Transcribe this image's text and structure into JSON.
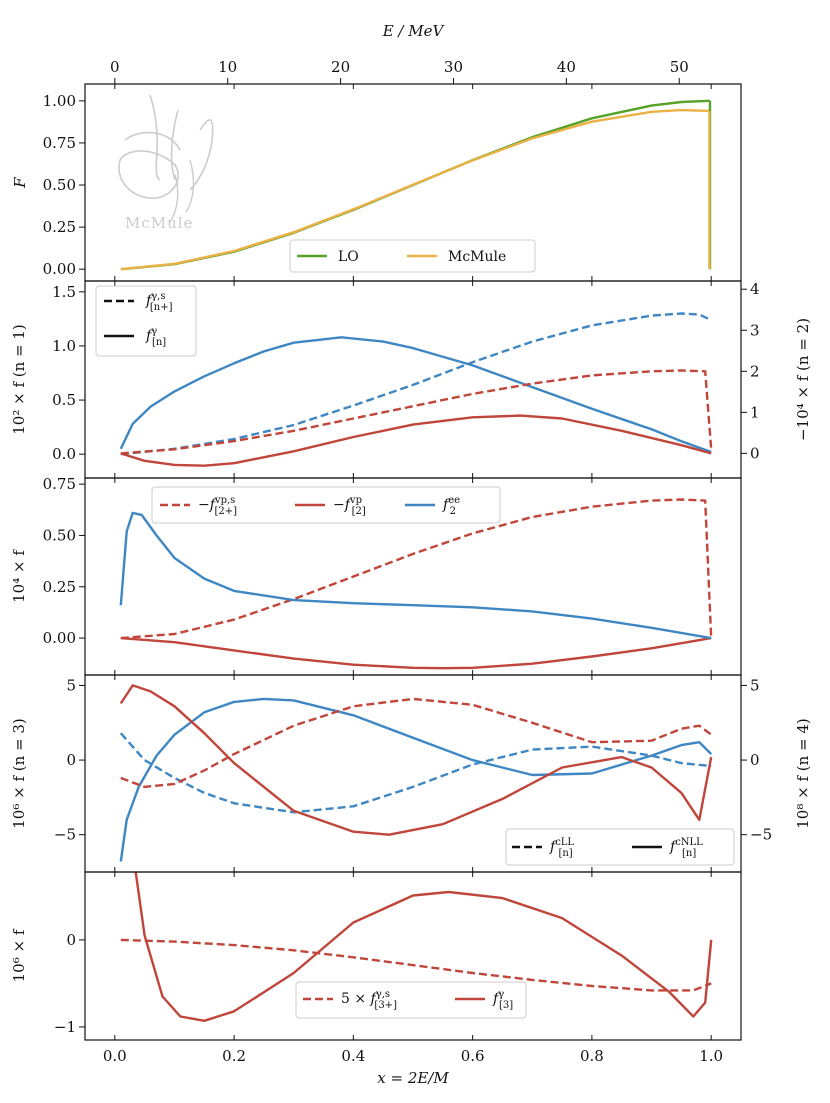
{
  "colors": {
    "green": "#56a227",
    "orange": "#ecb146",
    "blue": "#3f87c2",
    "red": "#c0453a",
    "black": "#111111",
    "watermark": "#cccccc"
  },
  "watermark": {
    "text": "McMule"
  },
  "chart_data": [
    {
      "type": "line",
      "top_axis": {
        "label": "E / MeV",
        "ticks": [
          0,
          10,
          20,
          30,
          40,
          50
        ],
        "range": [
          0,
          52.83
        ],
        "ticks_shown": [
          "0",
          "10",
          "20",
          "30",
          "40",
          "50"
        ]
      },
      "ylabel": "F",
      "ylim": [
        -0.07,
        1.1
      ],
      "yticks": [
        "0.00",
        "0.25",
        "0.50",
        "0.75",
        "1.00"
      ],
      "legend": [
        "LO",
        "McMule"
      ],
      "series": [
        {
          "name": "LO",
          "color": "green",
          "style": "solid",
          "x": [
            0.01,
            0.1,
            0.2,
            0.3,
            0.4,
            0.5,
            0.6,
            0.7,
            0.8,
            0.9,
            0.95,
            0.998
          ],
          "y": [
            0,
            0.03,
            0.104,
            0.216,
            0.352,
            0.5,
            0.648,
            0.784,
            0.896,
            0.972,
            0.993,
            1.0
          ]
        },
        {
          "name": "McMule",
          "color": "orange",
          "style": "solid",
          "x": [
            0.01,
            0.1,
            0.2,
            0.3,
            0.4,
            0.5,
            0.6,
            0.7,
            0.8,
            0.9,
            0.95,
            0.997
          ],
          "y": [
            0,
            0.032,
            0.108,
            0.22,
            0.356,
            0.502,
            0.646,
            0.777,
            0.876,
            0.935,
            0.945,
            0.94
          ]
        }
      ]
    },
    {
      "type": "line",
      "ylabel_left": "10² × f (n = 1)",
      "ylabel_right": "−10⁴ × f (n = 2)",
      "ylim_left": [
        -0.22,
        1.6
      ],
      "yticks_left": [
        "0.0",
        "0.5",
        "1.0",
        "1.5"
      ],
      "ylim_right": [
        -0.6,
        4.2
      ],
      "yticks_right": [
        "0",
        "1",
        "2",
        "3",
        "4"
      ],
      "legend": [
        "f^{γ,s}_{[n+]}",
        "f^{γ}_{[n]}"
      ],
      "series": [
        {
          "name": "blue solid",
          "color": "blue",
          "style": "solid",
          "axis": "left",
          "x": [
            0.01,
            0.03,
            0.06,
            0.1,
            0.15,
            0.2,
            0.25,
            0.3,
            0.38,
            0.45,
            0.5,
            0.6,
            0.7,
            0.8,
            0.9,
            0.95,
            1.0
          ],
          "y": [
            0.05,
            0.28,
            0.44,
            0.58,
            0.72,
            0.84,
            0.95,
            1.03,
            1.08,
            1.04,
            0.98,
            0.82,
            0.62,
            0.42,
            0.23,
            0.12,
            0.02
          ]
        },
        {
          "name": "blue dashed",
          "color": "blue",
          "style": "dashed",
          "axis": "left",
          "x": [
            0.01,
            0.1,
            0.2,
            0.3,
            0.4,
            0.5,
            0.6,
            0.7,
            0.8,
            0.9,
            0.95,
            0.98,
            1.0
          ],
          "y": [
            0.0,
            0.05,
            0.14,
            0.27,
            0.45,
            0.64,
            0.85,
            1.04,
            1.19,
            1.28,
            1.3,
            1.29,
            1.24
          ]
        },
        {
          "name": "red solid",
          "color": "red",
          "style": "solid",
          "axis": "right",
          "x": [
            0.01,
            0.05,
            0.1,
            0.15,
            0.2,
            0.3,
            0.4,
            0.5,
            0.6,
            0.68,
            0.75,
            0.85,
            0.95,
            1.0
          ],
          "y": [
            0.0,
            -0.18,
            -0.28,
            -0.3,
            -0.24,
            0.05,
            0.4,
            0.7,
            0.88,
            0.92,
            0.85,
            0.55,
            0.2,
            0.0
          ]
        },
        {
          "name": "red dashed",
          "color": "red",
          "style": "dashed",
          "axis": "right",
          "x": [
            0.01,
            0.1,
            0.2,
            0.3,
            0.4,
            0.5,
            0.6,
            0.7,
            0.8,
            0.9,
            0.95,
            0.99,
            1.0
          ],
          "y": [
            0.0,
            0.1,
            0.3,
            0.55,
            0.85,
            1.15,
            1.45,
            1.7,
            1.9,
            2.0,
            2.02,
            2.0,
            0.1
          ]
        }
      ]
    },
    {
      "type": "line",
      "ylabel": "10⁴ × f",
      "ylim": [
        -0.18,
        0.78
      ],
      "yticks": [
        "0.00",
        "0.25",
        "0.50",
        "0.75"
      ],
      "legend": [
        "−f^{vp,s}_{[2+]}",
        "−f^{vp}_{[2]}",
        "f^{ee}_{2}"
      ],
      "series": [
        {
          "name": "−f vp,s [2+]",
          "color": "red",
          "style": "dashed",
          "x": [
            0.01,
            0.1,
            0.2,
            0.3,
            0.4,
            0.5,
            0.6,
            0.7,
            0.8,
            0.9,
            0.95,
            0.99,
            1.0
          ],
          "y": [
            0.0,
            0.02,
            0.09,
            0.19,
            0.3,
            0.41,
            0.51,
            0.59,
            0.64,
            0.67,
            0.675,
            0.67,
            0.0
          ]
        },
        {
          "name": "−f vp [2]",
          "color": "red",
          "style": "solid",
          "x": [
            0.01,
            0.1,
            0.2,
            0.3,
            0.4,
            0.5,
            0.55,
            0.6,
            0.7,
            0.8,
            0.9,
            1.0
          ],
          "y": [
            0.0,
            -0.02,
            -0.06,
            -0.1,
            -0.13,
            -0.145,
            -0.147,
            -0.145,
            -0.125,
            -0.09,
            -0.05,
            0.0
          ]
        },
        {
          "name": "f ee 2",
          "color": "blue",
          "style": "solid",
          "x": [
            0.01,
            0.02,
            0.03,
            0.045,
            0.07,
            0.1,
            0.15,
            0.2,
            0.3,
            0.4,
            0.5,
            0.6,
            0.7,
            0.8,
            0.9,
            1.0
          ],
          "y": [
            0.16,
            0.52,
            0.61,
            0.6,
            0.5,
            0.39,
            0.29,
            0.23,
            0.185,
            0.17,
            0.16,
            0.15,
            0.13,
            0.095,
            0.05,
            0.0
          ]
        }
      ]
    },
    {
      "type": "line",
      "ylabel_left": "10⁶ × f (n = 3)",
      "ylabel_right": "10⁸ × f (n = 4)",
      "ylim_left": [
        -7.5,
        5.7
      ],
      "yticks_left": [
        "−5",
        "0",
        "5"
      ],
      "ylim_right": [
        -7.5,
        5.7
      ],
      "yticks_right": [
        "−5",
        "0",
        "5"
      ],
      "legend": [
        "f^{cLL}_{[n]}",
        "f^{cNLL}_{[n]}"
      ],
      "series": [
        {
          "name": "blue solid",
          "color": "blue",
          "style": "solid",
          "axis": "left",
          "x": [
            0.01,
            0.02,
            0.04,
            0.07,
            0.1,
            0.15,
            0.2,
            0.25,
            0.3,
            0.4,
            0.5,
            0.6,
            0.7,
            0.8,
            0.9,
            0.95,
            0.98,
            1.0
          ],
          "y": [
            -6.8,
            -4.0,
            -1.8,
            0.3,
            1.7,
            3.2,
            3.9,
            4.1,
            4.0,
            3.0,
            1.5,
            0.0,
            -1.0,
            -0.9,
            0.3,
            1.0,
            1.2,
            0.4
          ]
        },
        {
          "name": "blue dashed",
          "color": "blue",
          "style": "dashed",
          "axis": "left",
          "x": [
            0.01,
            0.05,
            0.1,
            0.15,
            0.2,
            0.3,
            0.4,
            0.5,
            0.6,
            0.7,
            0.8,
            0.9,
            0.95,
            1.0
          ],
          "y": [
            1.8,
            0.0,
            -1.2,
            -2.2,
            -2.9,
            -3.5,
            -3.1,
            -1.8,
            -0.3,
            0.7,
            0.9,
            0.3,
            -0.2,
            -0.4
          ]
        },
        {
          "name": "red solid",
          "color": "red",
          "style": "solid",
          "axis": "right",
          "x": [
            0.01,
            0.03,
            0.06,
            0.1,
            0.15,
            0.2,
            0.3,
            0.4,
            0.46,
            0.55,
            0.65,
            0.75,
            0.85,
            0.9,
            0.95,
            0.98,
            1.0
          ],
          "y": [
            3.8,
            5.0,
            4.6,
            3.6,
            1.8,
            -0.2,
            -3.4,
            -4.8,
            -5.0,
            -4.3,
            -2.6,
            -0.5,
            0.2,
            -0.5,
            -2.2,
            -4.0,
            0.2
          ]
        },
        {
          "name": "red dashed",
          "color": "red",
          "style": "dashed",
          "axis": "right",
          "x": [
            0.01,
            0.05,
            0.1,
            0.15,
            0.2,
            0.3,
            0.4,
            0.5,
            0.6,
            0.7,
            0.8,
            0.9,
            0.95,
            0.98,
            1.0
          ],
          "y": [
            -1.2,
            -1.8,
            -1.6,
            -0.7,
            0.4,
            2.3,
            3.6,
            4.1,
            3.7,
            2.5,
            1.2,
            1.3,
            2.1,
            2.3,
            1.7
          ]
        }
      ]
    },
    {
      "type": "line",
      "xlabel": "x = 2E/M",
      "xlim": [
        -0.05,
        1.05
      ],
      "xticks": [
        "0.0",
        "0.2",
        "0.4",
        "0.6",
        "0.8",
        "1.0"
      ],
      "ylabel": "10⁶ × f",
      "ylim": [
        -1.15,
        0.78
      ],
      "yticks": [
        "−1",
        "0"
      ],
      "legend": [
        "5 × f^{γ,s}_{[3+]}",
        "f^{γ}_{[3]}"
      ],
      "series": [
        {
          "name": "5 × f γ,s [3+]",
          "color": "red",
          "style": "dashed",
          "x": [
            0.01,
            0.1,
            0.2,
            0.3,
            0.4,
            0.5,
            0.6,
            0.7,
            0.8,
            0.9,
            0.97,
            1.0
          ],
          "y": [
            0.0,
            -0.02,
            -0.06,
            -0.12,
            -0.2,
            -0.29,
            -0.38,
            -0.46,
            -0.53,
            -0.58,
            -0.58,
            -0.5
          ]
        },
        {
          "name": "f γ [3]",
          "color": "red",
          "style": "solid",
          "x": [
            0.035,
            0.05,
            0.08,
            0.11,
            0.15,
            0.2,
            0.3,
            0.4,
            0.5,
            0.56,
            0.65,
            0.75,
            0.85,
            0.93,
            0.97,
            0.99,
            1.0
          ],
          "y": [
            0.78,
            0.05,
            -0.65,
            -0.88,
            -0.93,
            -0.82,
            -0.38,
            0.2,
            0.51,
            0.55,
            0.48,
            0.25,
            -0.18,
            -0.6,
            -0.88,
            -0.72,
            0.0
          ]
        }
      ]
    }
  ]
}
